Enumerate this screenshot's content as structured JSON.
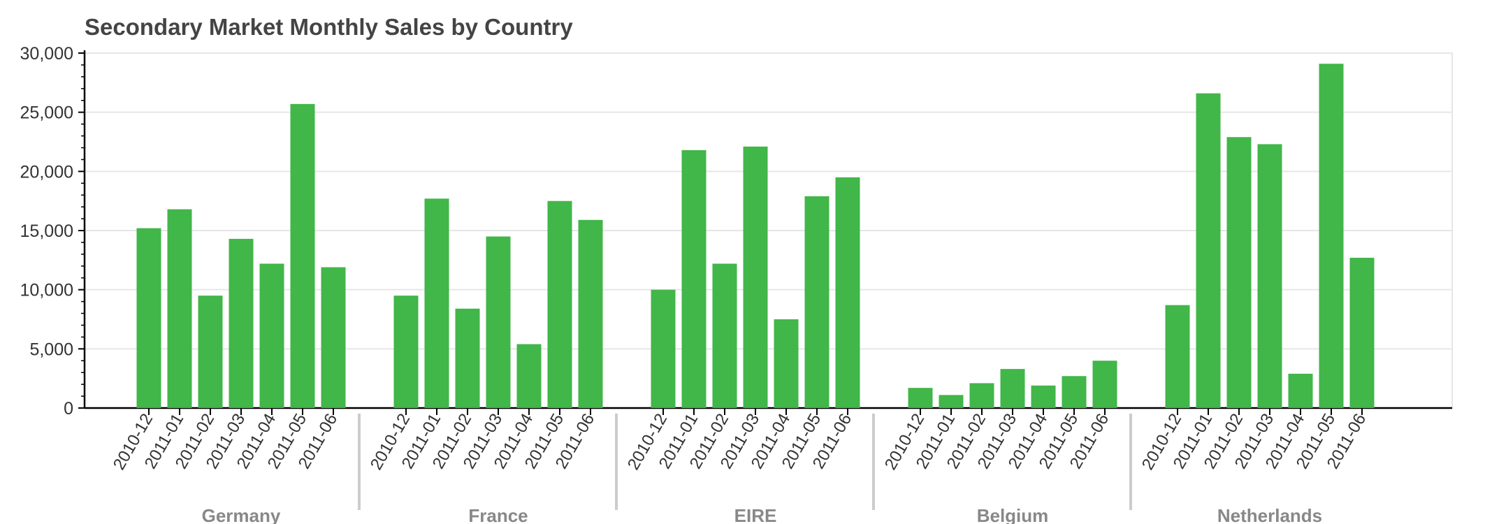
{
  "chart_data": {
    "type": "bar",
    "title": "Secondary Market Monthly Sales by Country",
    "xlabel": "",
    "ylabel": "",
    "ylim": [
      0,
      30000
    ],
    "yticks": [
      0,
      5000,
      10000,
      15000,
      20000,
      25000,
      30000
    ],
    "ytick_labels": [
      "0",
      "5,000",
      "10,000",
      "15,000",
      "20,000",
      "25,000",
      "30,000"
    ],
    "grid": true,
    "bar_color": "#41b649",
    "groups": [
      {
        "name": "Germany",
        "categories": [
          "2010-12",
          "2011-01",
          "2011-02",
          "2011-03",
          "2011-04",
          "2011-05",
          "2011-06"
        ],
        "values": [
          15200,
          16800,
          9500,
          14300,
          12200,
          25700,
          11900
        ]
      },
      {
        "name": "France",
        "categories": [
          "2010-12",
          "2011-01",
          "2011-02",
          "2011-03",
          "2011-04",
          "2011-05",
          "2011-06"
        ],
        "values": [
          9500,
          17700,
          8400,
          14500,
          5400,
          17500,
          15900
        ]
      },
      {
        "name": "EIRE",
        "categories": [
          "2010-12",
          "2011-01",
          "2011-02",
          "2011-03",
          "2011-04",
          "2011-05",
          "2011-06"
        ],
        "values": [
          10000,
          21800,
          12200,
          22100,
          7500,
          17900,
          19500
        ]
      },
      {
        "name": "Belgium",
        "categories": [
          "2010-12",
          "2011-01",
          "2011-02",
          "2011-03",
          "2011-04",
          "2011-05",
          "2011-06"
        ],
        "values": [
          1700,
          1100,
          2100,
          3300,
          1900,
          2700,
          4000
        ]
      },
      {
        "name": "Netherlands",
        "categories": [
          "2010-12",
          "2011-01",
          "2011-02",
          "2011-03",
          "2011-04",
          "2011-05",
          "2011-06"
        ],
        "values": [
          8700,
          26600,
          22900,
          22300,
          2900,
          29100,
          12700
        ]
      }
    ]
  }
}
